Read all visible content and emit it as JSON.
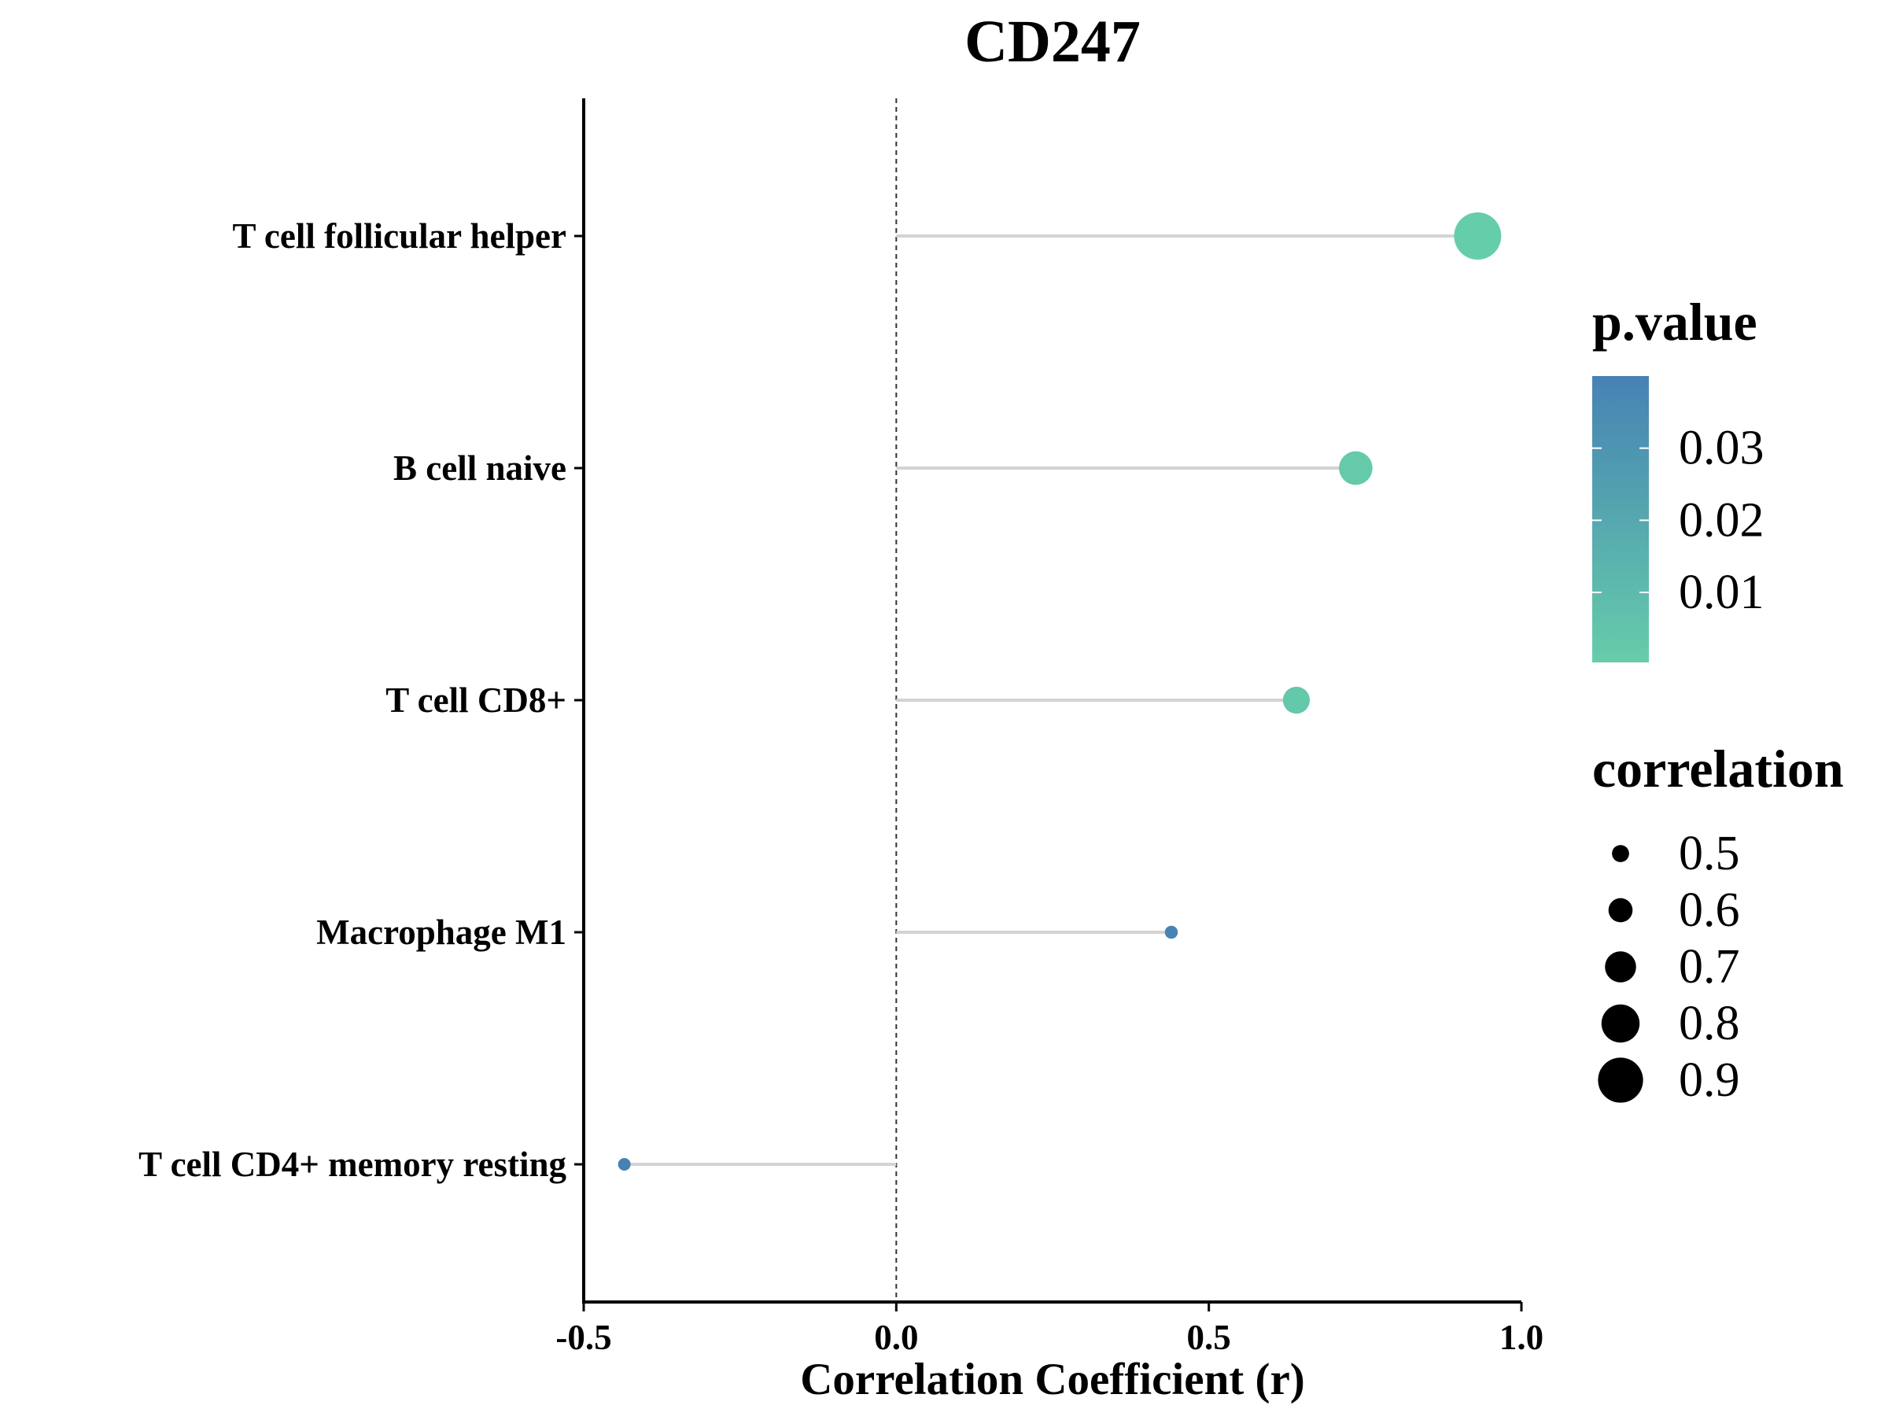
{
  "chart_data": {
    "type": "lollipop",
    "title": "CD247",
    "xlabel": "Correlation Coefficient (r)",
    "ylabel": "",
    "xlim": [
      -0.5,
      1.0
    ],
    "xticks": [
      {
        "value": -0.5,
        "label": "-0.5"
      },
      {
        "value": 0.0,
        "label": "0.0"
      },
      {
        "value": 0.5,
        "label": "0.5"
      },
      {
        "value": 1.0,
        "label": "1.0"
      }
    ],
    "reference_line": 0.0,
    "grid": false,
    "points": [
      {
        "category": "T cell follicular helper",
        "r": 0.93,
        "p_value": 0.0003,
        "correlation": 0.93
      },
      {
        "category": "B cell naive",
        "r": 0.735,
        "p_value": 0.002,
        "correlation": 0.735
      },
      {
        "category": "T cell CD8+",
        "r": 0.64,
        "p_value": 0.003,
        "correlation": 0.64
      },
      {
        "category": "Macrophage M1",
        "r": 0.44,
        "p_value": 0.039,
        "correlation": 0.44
      },
      {
        "category": "T cell CD4+ memory resting",
        "r": -0.435,
        "p_value": 0.04,
        "correlation": 0.435
      }
    ],
    "color_legend": {
      "title": "p.value",
      "low_color": "#66CDAA",
      "high_color": "#4682B4",
      "range": [
        0.0003,
        0.04
      ],
      "ticks": [
        {
          "value": 0.03,
          "label": "0.03"
        },
        {
          "value": 0.02,
          "label": "0.02"
        },
        {
          "value": 0.01,
          "label": "0.01"
        }
      ]
    },
    "size_legend": {
      "title": "correlation",
      "range": [
        0.435,
        0.93
      ],
      "entries": [
        {
          "value": 0.5,
          "label": "0.5"
        },
        {
          "value": 0.6,
          "label": "0.6"
        },
        {
          "value": 0.7,
          "label": "0.7"
        },
        {
          "value": 0.8,
          "label": "0.8"
        },
        {
          "value": 0.9,
          "label": "0.9"
        }
      ]
    },
    "stem_color": "#D3D3D3",
    "legend_position": "right"
  }
}
